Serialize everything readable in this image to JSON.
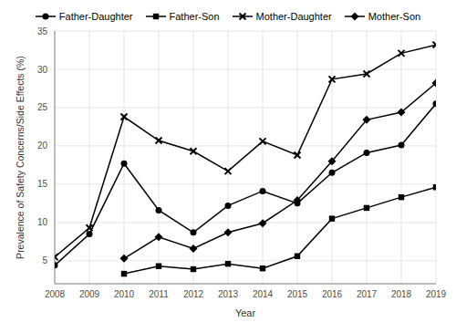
{
  "chart_data": {
    "type": "line",
    "x_label": "Year",
    "y_label": "Prevalence of Safety Concerns/Side Effects (%)",
    "x": [
      2008,
      2009,
      2010,
      2011,
      2012,
      2013,
      2014,
      2015,
      2016,
      2017,
      2018,
      2019
    ],
    "series": [
      {
        "name": "Father-Daughter",
        "color": "#000000",
        "marker": "circle",
        "values": [
          4.4,
          8.5,
          17.7,
          11.6,
          8.7,
          12.2,
          14.1,
          12.5,
          16.5,
          19.1,
          20.1,
          25.5
        ]
      },
      {
        "name": "Father-Son",
        "color": "#000000",
        "marker": "square",
        "values": [
          null,
          null,
          3.3,
          4.3,
          3.9,
          4.6,
          4.0,
          5.6,
          10.5,
          11.9,
          13.3,
          14.6
        ]
      },
      {
        "name": "Mother-Daughter",
        "color": "#000000",
        "marker": "cross",
        "values": [
          5.5,
          9.3,
          23.8,
          20.7,
          19.3,
          16.7,
          20.6,
          18.8,
          28.7,
          29.4,
          32.1,
          33.2
        ]
      },
      {
        "name": "Mother-Son",
        "color": "#000000",
        "marker": "diamond",
        "values": [
          null,
          null,
          5.3,
          8.1,
          6.6,
          8.7,
          9.9,
          12.9,
          18.0,
          23.4,
          24.4,
          28.2
        ]
      }
    ],
    "xlim": [
      2008,
      2019
    ],
    "xticks": [
      2008,
      2009,
      2010,
      2011,
      2012,
      2013,
      2014,
      2015,
      2016,
      2017,
      2018,
      2019
    ],
    "ylim": [
      2,
      35
    ],
    "yticks": [
      5,
      10,
      15,
      20,
      25,
      30,
      35
    ],
    "grid": true,
    "legend": "top"
  }
}
